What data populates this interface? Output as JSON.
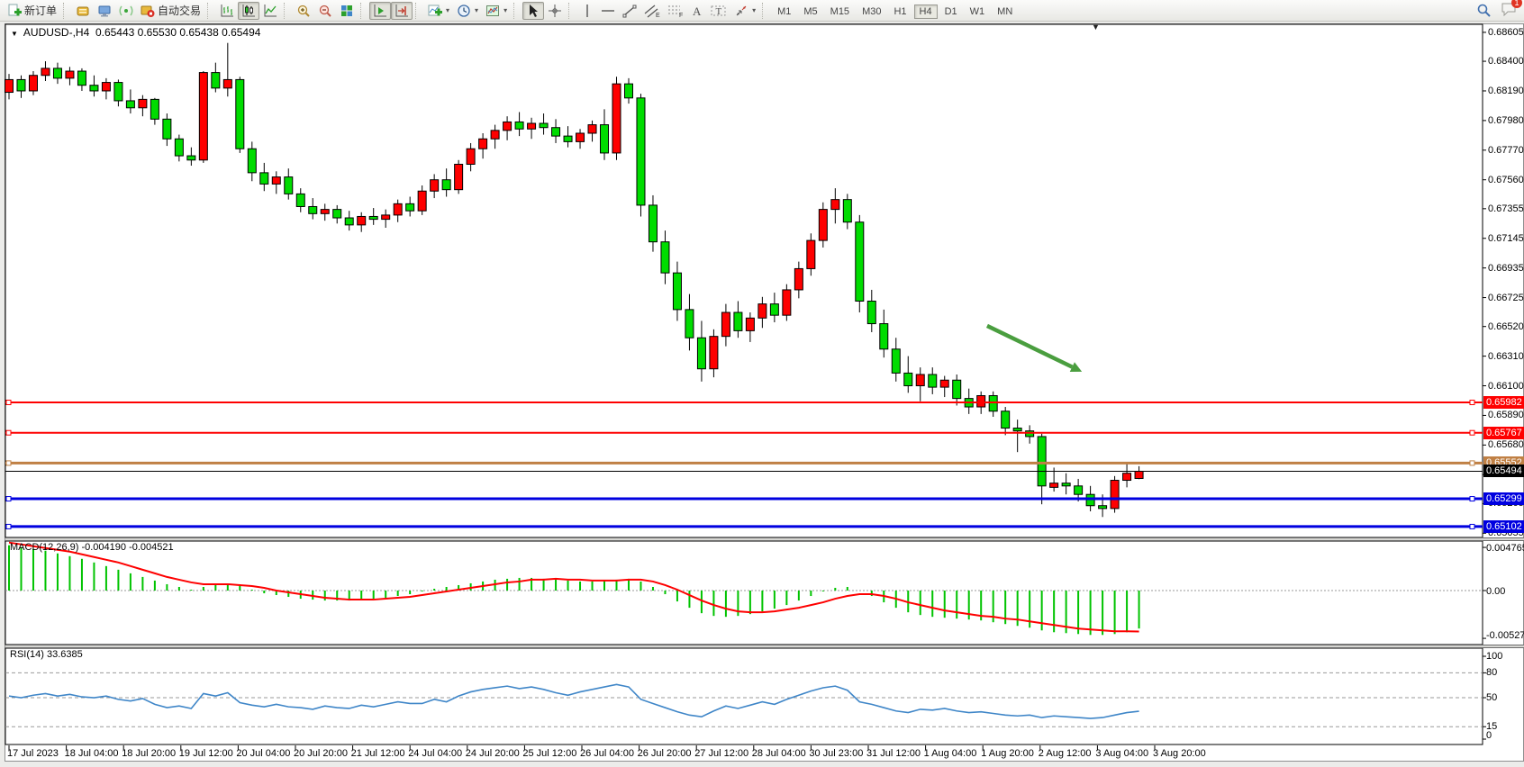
{
  "toolbar": {
    "new_order_label": "新订单",
    "auto_trading_label": "自动交易",
    "timeframes": [
      "M1",
      "M5",
      "M15",
      "M30",
      "H1",
      "H4",
      "D1",
      "W1",
      "MN"
    ],
    "active_timeframe": "H4",
    "notification_count": "1",
    "glyphs": {
      "text_tool": "A",
      "label_tool": "T",
      "channel_sub": "E",
      "fibo_sub": "F",
      "caret": "▾"
    }
  },
  "window": {
    "symbol_menu_glyph": "▼",
    "shift_marker_glyph": "▼"
  },
  "chart": {
    "symbol_period": "AUDUSD-,H4",
    "quote": "0.65443 0.65530 0.65438 0.65494"
  },
  "price_axis": {
    "ticks": [
      "0.68605",
      "0.68400",
      "0.68190",
      "0.67980",
      "0.67770",
      "0.67560",
      "0.67355",
      "0.67145",
      "0.66935",
      "0.66725",
      "0.66520",
      "0.66310",
      "0.66100",
      "0.65890",
      "0.65680",
      "0.65470",
      "0.65265",
      "0.65055"
    ]
  },
  "lines": [
    {
      "label": "0.65982",
      "price": 0.65982,
      "color": "#fe0000",
      "width": 2
    },
    {
      "label": "0.65767",
      "price": 0.65767,
      "color": "#fe0000",
      "width": 2
    },
    {
      "label": "0.65552",
      "price": 0.65552,
      "color": "#c08044",
      "width": 3
    },
    {
      "label": "0.65299",
      "price": 0.65299,
      "color": "#0000e0",
      "width": 3
    },
    {
      "label": "0.65102",
      "price": 0.65102,
      "color": "#0000e0",
      "width": 3
    }
  ],
  "bid_line": {
    "label": "0.65494",
    "price": 0.65494,
    "color": "#000000",
    "width": 1
  },
  "indicators": {
    "macd_label": "MACD(12,26,9) -0.004190 -0.004521",
    "rsi_label": "RSI(14) 33.6385",
    "macd_axis": [
      {
        "text": "0.004765",
        "value": 0.004765
      },
      {
        "text": "0.00",
        "value": 0
      },
      {
        "text": "-0.005276",
        "value": -0.005276
      }
    ],
    "rsi_axis": [
      {
        "text": "100",
        "value": 100
      },
      {
        "text": "80",
        "value": 80
      },
      {
        "text": "50",
        "value": 50
      },
      {
        "text": "15",
        "value": 15
      },
      {
        "text": "0",
        "value": 0
      }
    ],
    "rsi_levels": [
      80,
      50,
      15
    ]
  },
  "chart_data": {
    "type": "candlestick",
    "symbol": "AUDUSD",
    "period": "H4",
    "up_color": "#fe0000",
    "down_color": "#00dc00",
    "main_range": {
      "top": 0.68662,
      "bottom": 0.65025
    },
    "macd_range": {
      "top": 0.005467,
      "bottom": -0.005964
    },
    "rsi_range": {
      "top": 109.8,
      "bottom": -6.5
    },
    "x_labels": [
      "17 Jul 2023",
      "18 Jul 04:00",
      "18 Jul 20:00",
      "19 Jul 12:00",
      "20 Jul 04:00",
      "20 Jul 20:00",
      "21 Jul 12:00",
      "24 Jul 04:00",
      "24 Jul 20:00",
      "25 Jul 12:00",
      "26 Jul 04:00",
      "26 Jul 20:00",
      "27 Jul 12:00",
      "28 Jul 04:00",
      "30 Jul 23:00",
      "31 Jul 12:00",
      "1 Aug 04:00",
      "1 Aug 20:00",
      "2 Aug 12:00",
      "3 Aug 04:00",
      "3 Aug 20:00"
    ],
    "candles": [
      [
        0.6818,
        0.6831,
        0.6813,
        0.6827
      ],
      [
        0.6827,
        0.683,
        0.6814,
        0.6819
      ],
      [
        0.6819,
        0.6833,
        0.6816,
        0.683
      ],
      [
        0.683,
        0.684,
        0.6826,
        0.6835
      ],
      [
        0.6835,
        0.6839,
        0.6824,
        0.6828
      ],
      [
        0.6828,
        0.6836,
        0.6823,
        0.6833
      ],
      [
        0.6833,
        0.6835,
        0.6819,
        0.6823
      ],
      [
        0.6823,
        0.683,
        0.6815,
        0.6819
      ],
      [
        0.6819,
        0.6828,
        0.6813,
        0.6825
      ],
      [
        0.6825,
        0.6827,
        0.6808,
        0.6812
      ],
      [
        0.6812,
        0.682,
        0.6803,
        0.6807
      ],
      [
        0.6807,
        0.6816,
        0.6801,
        0.6813
      ],
      [
        0.6813,
        0.6814,
        0.6795,
        0.6799
      ],
      [
        0.6799,
        0.6803,
        0.678,
        0.6785
      ],
      [
        0.6785,
        0.6788,
        0.6769,
        0.6773
      ],
      [
        0.6773,
        0.6779,
        0.6766,
        0.677
      ],
      [
        0.677,
        0.6833,
        0.6768,
        0.6832
      ],
      [
        0.6832,
        0.6839,
        0.6818,
        0.6821
      ],
      [
        0.6821,
        0.6853,
        0.6815,
        0.6827
      ],
      [
        0.6827,
        0.6829,
        0.6775,
        0.6778
      ],
      [
        0.6778,
        0.6783,
        0.6755,
        0.6761
      ],
      [
        0.6761,
        0.6768,
        0.6748,
        0.6753
      ],
      [
        0.6753,
        0.6762,
        0.6746,
        0.6758
      ],
      [
        0.6758,
        0.6764,
        0.6742,
        0.6746
      ],
      [
        0.6746,
        0.675,
        0.6733,
        0.6737
      ],
      [
        0.6737,
        0.6743,
        0.6728,
        0.6732
      ],
      [
        0.6732,
        0.6739,
        0.6727,
        0.6735
      ],
      [
        0.6735,
        0.6738,
        0.6725,
        0.6729
      ],
      [
        0.6729,
        0.6734,
        0.672,
        0.6724
      ],
      [
        0.6724,
        0.6733,
        0.6719,
        0.673
      ],
      [
        0.673,
        0.6736,
        0.6724,
        0.6728
      ],
      [
        0.6728,
        0.6735,
        0.6722,
        0.6731
      ],
      [
        0.6731,
        0.6742,
        0.6726,
        0.6739
      ],
      [
        0.6739,
        0.6744,
        0.673,
        0.6734
      ],
      [
        0.6734,
        0.6752,
        0.6731,
        0.6748
      ],
      [
        0.6748,
        0.676,
        0.6743,
        0.6756
      ],
      [
        0.6756,
        0.6764,
        0.6744,
        0.6749
      ],
      [
        0.6749,
        0.677,
        0.6746,
        0.6767
      ],
      [
        0.6767,
        0.6782,
        0.6762,
        0.6778
      ],
      [
        0.6778,
        0.6789,
        0.6771,
        0.6785
      ],
      [
        0.6785,
        0.6795,
        0.6778,
        0.6791
      ],
      [
        0.6791,
        0.6801,
        0.6784,
        0.6797
      ],
      [
        0.6797,
        0.6804,
        0.6787,
        0.6792
      ],
      [
        0.6792,
        0.68,
        0.6785,
        0.6796
      ],
      [
        0.6796,
        0.6803,
        0.6788,
        0.6793
      ],
      [
        0.6793,
        0.6799,
        0.6782,
        0.6787
      ],
      [
        0.6787,
        0.6794,
        0.6779,
        0.6783
      ],
      [
        0.6783,
        0.6792,
        0.6778,
        0.6789
      ],
      [
        0.6789,
        0.6798,
        0.6783,
        0.6795
      ],
      [
        0.6795,
        0.6806,
        0.677,
        0.6775
      ],
      [
        0.6775,
        0.6829,
        0.677,
        0.6824
      ],
      [
        0.6824,
        0.6828,
        0.681,
        0.6814
      ],
      [
        0.6814,
        0.6817,
        0.673,
        0.6738
      ],
      [
        0.6738,
        0.6745,
        0.6705,
        0.6712
      ],
      [
        0.6712,
        0.672,
        0.6682,
        0.669
      ],
      [
        0.669,
        0.6698,
        0.6656,
        0.6664
      ],
      [
        0.6664,
        0.6675,
        0.6635,
        0.6644
      ],
      [
        0.6644,
        0.6656,
        0.6613,
        0.6622
      ],
      [
        0.6622,
        0.665,
        0.6616,
        0.6645
      ],
      [
        0.6645,
        0.6668,
        0.6638,
        0.6662
      ],
      [
        0.6662,
        0.667,
        0.6644,
        0.6649
      ],
      [
        0.6649,
        0.6662,
        0.6641,
        0.6658
      ],
      [
        0.6658,
        0.6673,
        0.6651,
        0.6668
      ],
      [
        0.6668,
        0.6676,
        0.6655,
        0.666
      ],
      [
        0.666,
        0.6682,
        0.6656,
        0.6678
      ],
      [
        0.6678,
        0.6698,
        0.6672,
        0.6693
      ],
      [
        0.6693,
        0.6718,
        0.6688,
        0.6713
      ],
      [
        0.6713,
        0.674,
        0.6708,
        0.6735
      ],
      [
        0.6735,
        0.675,
        0.6725,
        0.6742
      ],
      [
        0.6742,
        0.6746,
        0.6721,
        0.6726
      ],
      [
        0.6726,
        0.6731,
        0.6662,
        0.667
      ],
      [
        0.667,
        0.6678,
        0.6648,
        0.6654
      ],
      [
        0.6654,
        0.6664,
        0.663,
        0.6636
      ],
      [
        0.6636,
        0.6644,
        0.6613,
        0.6619
      ],
      [
        0.6619,
        0.6631,
        0.6605,
        0.661
      ],
      [
        0.661,
        0.6623,
        0.6599,
        0.6618
      ],
      [
        0.6618,
        0.6623,
        0.6604,
        0.6609
      ],
      [
        0.6609,
        0.6617,
        0.6602,
        0.6614
      ],
      [
        0.6614,
        0.6618,
        0.6596,
        0.6601
      ],
      [
        0.6601,
        0.6608,
        0.659,
        0.6595
      ],
      [
        0.6595,
        0.6606,
        0.659,
        0.6603
      ],
      [
        0.6603,
        0.6606,
        0.6588,
        0.6592
      ],
      [
        0.6592,
        0.6595,
        0.6575,
        0.658
      ],
      [
        0.658,
        0.6586,
        0.6563,
        0.6578
      ],
      [
        0.6578,
        0.6582,
        0.6569,
        0.6574
      ],
      [
        0.6574,
        0.6576,
        0.6526,
        0.6539
      ],
      [
        0.6538,
        0.6552,
        0.6535,
        0.6541
      ],
      [
        0.6541,
        0.6548,
        0.6533,
        0.6539
      ],
      [
        0.6539,
        0.6544,
        0.6528,
        0.6533
      ],
      [
        0.6533,
        0.6539,
        0.6521,
        0.6525
      ],
      [
        0.6525,
        0.6533,
        0.6517,
        0.6523
      ],
      [
        0.6523,
        0.6546,
        0.652,
        0.6543
      ],
      [
        0.6543,
        0.6556,
        0.6538,
        0.6548
      ],
      [
        0.65443,
        0.6553,
        0.65438,
        0.65494
      ]
    ],
    "macd": {
      "hist_color": "#00c300",
      "signal_color": "#fe0000",
      "histogram": [
        0.005,
        0.0048,
        0.0046,
        0.0044,
        0.0041,
        0.0038,
        0.0035,
        0.0031,
        0.0027,
        0.0023,
        0.0019,
        0.0015,
        0.0011,
        0.0007,
        0.0004,
        0.0001,
        0.0004,
        0.0006,
        0.0007,
        0.0005,
        0.0001,
        -0.0003,
        -0.0005,
        -0.0007,
        -0.0009,
        -0.001,
        -0.0011,
        -0.0011,
        -0.0011,
        -0.001,
        -0.0009,
        -0.0008,
        -0.0006,
        -0.0004,
        -0.0001,
        0.0002,
        0.0004,
        0.0006,
        0.0008,
        0.001,
        0.0012,
        0.0013,
        0.0014,
        0.0014,
        0.0013,
        0.0012,
        0.0011,
        0.001,
        0.001,
        0.0011,
        0.0012,
        0.0013,
        0.001,
        0.0004,
        -0.0004,
        -0.0012,
        -0.0019,
        -0.0025,
        -0.0028,
        -0.0029,
        -0.0028,
        -0.0026,
        -0.0023,
        -0.002,
        -0.0016,
        -0.0011,
        -0.0006,
        -0.0001,
        0.0003,
        0.0004,
        0.0,
        -0.0006,
        -0.0013,
        -0.0019,
        -0.0024,
        -0.0027,
        -0.0029,
        -0.003,
        -0.0031,
        -0.0032,
        -0.0033,
        -0.0035,
        -0.0037,
        -0.0039,
        -0.0041,
        -0.0044,
        -0.0046,
        -0.0047,
        -0.0048,
        -0.0049,
        -0.0049,
        -0.0048,
        -0.0046,
        -0.00419
      ],
      "signal": [
        0.0053,
        0.0051,
        0.0049,
        0.0047,
        0.0045,
        0.0043,
        0.004,
        0.0037,
        0.0034,
        0.0031,
        0.0027,
        0.0023,
        0.0019,
        0.0015,
        0.0012,
        0.0009,
        0.0007,
        0.0007,
        0.0007,
        0.0006,
        0.0005,
        0.0003,
        0.0,
        -0.0002,
        -0.0004,
        -0.0006,
        -0.0008,
        -0.0009,
        -0.001,
        -0.001,
        -0.001,
        -0.0009,
        -0.0008,
        -0.0007,
        -0.0005,
        -0.0003,
        -0.0001,
        0.0001,
        0.0003,
        0.0005,
        0.0007,
        0.0009,
        0.001,
        0.0012,
        0.0012,
        0.0013,
        0.0012,
        0.0012,
        0.0011,
        0.0011,
        0.0011,
        0.0012,
        0.0012,
        0.001,
        0.0006,
        0.0001,
        -0.0005,
        -0.0011,
        -0.0016,
        -0.002,
        -0.0023,
        -0.0024,
        -0.0024,
        -0.0023,
        -0.0021,
        -0.0019,
        -0.0016,
        -0.0013,
        -0.0009,
        -0.0006,
        -0.0004,
        -0.0004,
        -0.0006,
        -0.0009,
        -0.0013,
        -0.0016,
        -0.0019,
        -0.0022,
        -0.0024,
        -0.0026,
        -0.0028,
        -0.0029,
        -0.0031,
        -0.0032,
        -0.0034,
        -0.0036,
        -0.0038,
        -0.004,
        -0.0042,
        -0.0043,
        -0.0044,
        -0.0045,
        -0.0045,
        -0.004521
      ]
    },
    "rsi": {
      "color": "#3f86c8",
      "values": [
        52,
        50,
        53,
        55,
        52,
        54,
        51,
        50,
        52,
        48,
        46,
        49,
        42,
        38,
        40,
        37,
        55,
        52,
        56,
        44,
        41,
        39,
        42,
        39,
        38,
        36,
        40,
        38,
        37,
        41,
        39,
        42,
        45,
        43,
        43,
        48,
        45,
        52,
        57,
        60,
        62,
        64,
        61,
        63,
        60,
        56,
        53,
        57,
        60,
        63,
        66,
        63,
        48,
        43,
        38,
        33,
        29,
        27,
        34,
        40,
        37,
        41,
        45,
        42,
        48,
        53,
        58,
        62,
        64,
        59,
        45,
        42,
        38,
        34,
        32,
        36,
        35,
        37,
        34,
        32,
        33,
        31,
        29,
        28,
        29,
        26,
        28,
        27,
        26,
        25,
        26,
        29,
        32,
        33.6385
      ]
    },
    "annotations": [
      {
        "type": "arrow",
        "bar_from": 80.5,
        "price_from": 0.66525,
        "bar_to": 88.3,
        "price_to": 0.662,
        "color": "#4a9e3f"
      }
    ]
  }
}
